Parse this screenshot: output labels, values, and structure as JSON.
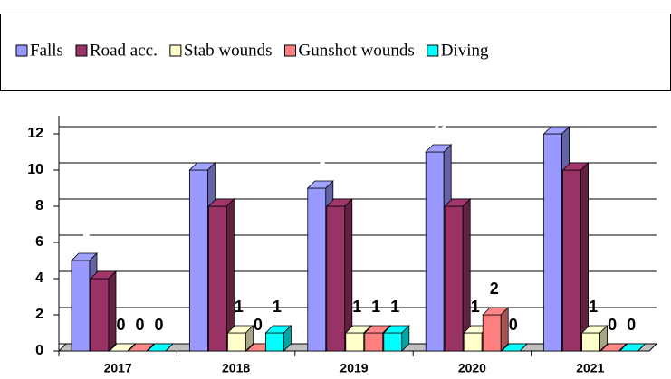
{
  "chart_data": {
    "type": "bar3d",
    "categories": [
      "2017",
      "2018",
      "2019",
      "2020",
      "2021"
    ],
    "series": [
      {
        "name": "Falls",
        "color": "#9999ff",
        "values": [
          5,
          10,
          9,
          11,
          12
        ]
      },
      {
        "name": "Road acc.",
        "color": "#993366",
        "values": [
          4,
          8,
          8,
          8,
          10
        ]
      },
      {
        "name": "Stab wounds",
        "color": "#ffffcc",
        "values": [
          0,
          1,
          1,
          1,
          1
        ]
      },
      {
        "name": "Gunshot wounds",
        "color": "#ff8080",
        "values": [
          0,
          0,
          1,
          2,
          0
        ]
      },
      {
        "name": "Diving",
        "color": "#00ffff",
        "values": [
          0,
          1,
          1,
          0,
          0
        ]
      }
    ],
    "ylim": [
      0,
      12
    ],
    "yticks": [
      0,
      2,
      4,
      6,
      8,
      10,
      12
    ],
    "grid": true
  }
}
